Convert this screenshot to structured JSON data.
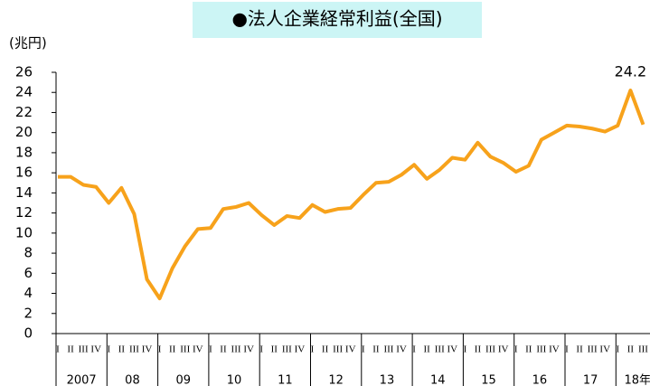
{
  "chart_data": {
    "type": "line",
    "title": "●法人企業経常利益(全国)",
    "ylabel": "(兆円)",
    "categories": [
      "I",
      "II",
      "III",
      "IV",
      "I",
      "II",
      "III",
      "IV",
      "I",
      "II",
      "III",
      "IV",
      "I",
      "II",
      "III",
      "IV",
      "I",
      "II",
      "III",
      "IV",
      "I",
      "II",
      "III",
      "IV",
      "I",
      "II",
      "III",
      "IV",
      "I",
      "II",
      "III",
      "IV",
      "I",
      "II",
      "III",
      "IV",
      "I",
      "II",
      "III",
      "IV",
      "I",
      "II",
      "III",
      "IV",
      "I",
      "II",
      "III"
    ],
    "groups": [
      "2007",
      "08",
      "09",
      "10",
      "11",
      "12",
      "13",
      "14",
      "15",
      "16",
      "17",
      "18年"
    ],
    "series": [
      {
        "name": "法人企業経常利益",
        "color": "#f7a21b",
        "values": [
          15.6,
          15.6,
          14.8,
          14.6,
          13.0,
          14.5,
          11.9,
          5.4,
          3.5,
          6.5,
          8.7,
          10.4,
          10.5,
          12.4,
          12.6,
          13.0,
          11.8,
          10.8,
          11.7,
          11.5,
          12.8,
          12.1,
          12.4,
          12.5,
          13.8,
          15.0,
          15.1,
          15.8,
          16.8,
          15.4,
          16.3,
          17.5,
          17.3,
          19.0,
          17.6,
          17.0,
          16.1,
          16.7,
          19.3,
          20.0,
          20.7,
          20.6,
          20.4,
          20.1,
          20.7,
          24.2,
          20.8
        ],
        "value_labels": {
          "45": "24.2",
          "46": "20.8"
        }
      }
    ],
    "ylim": [
      0,
      26
    ],
    "yticks": [
      0,
      2,
      4,
      6,
      8,
      10,
      12,
      14,
      16,
      18,
      20,
      22,
      24,
      26
    ]
  }
}
